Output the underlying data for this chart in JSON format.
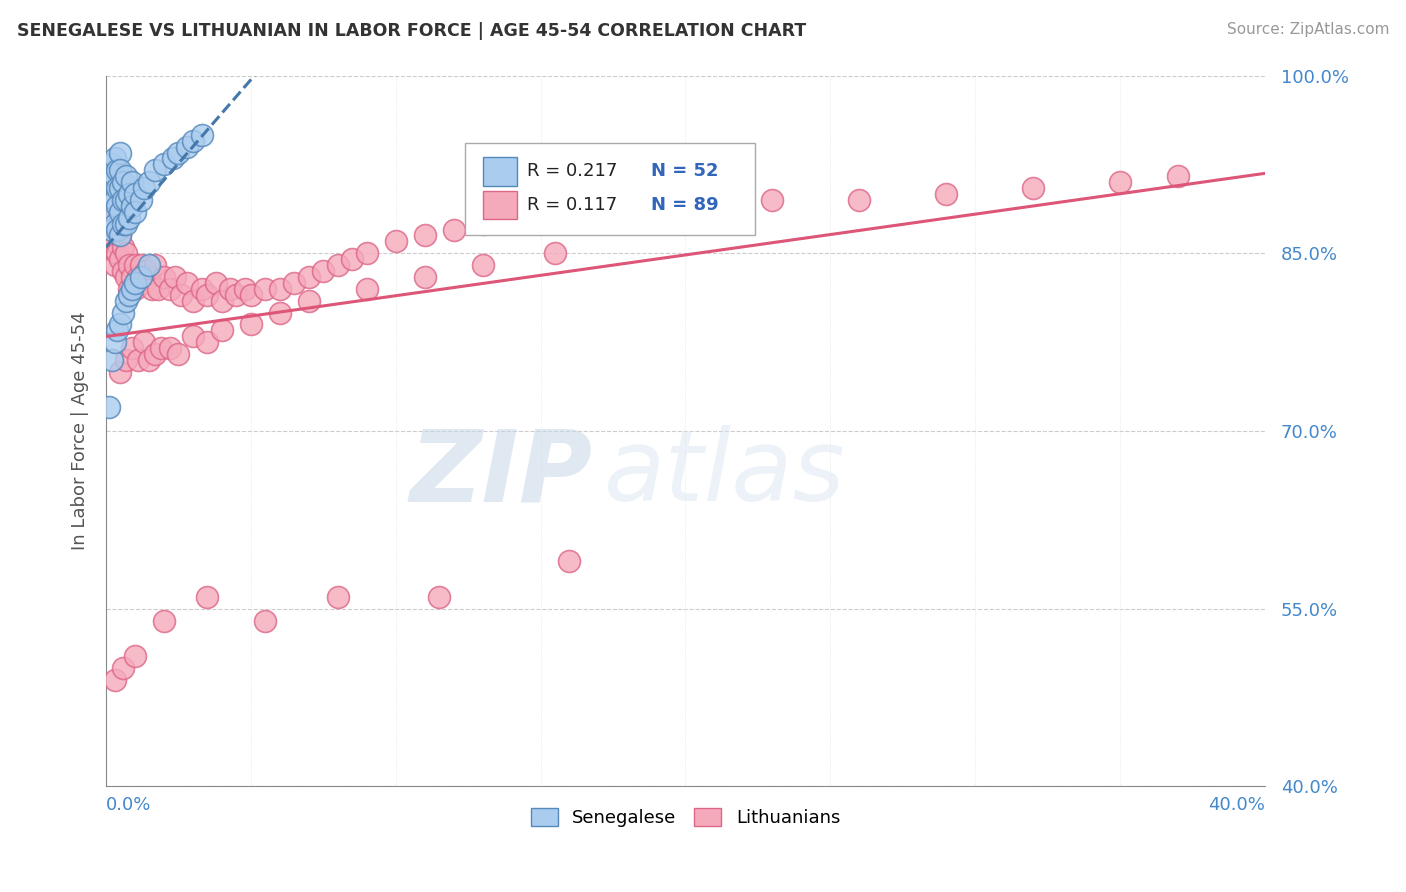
{
  "title": "SENEGALESE VS LITHUANIAN IN LABOR FORCE | AGE 45-54 CORRELATION CHART",
  "source": "Source: ZipAtlas.com",
  "ylabel": "In Labor Force | Age 45-54",
  "xmin": 0.0,
  "xmax": 0.4,
  "ymin": 0.4,
  "ymax": 1.0,
  "legend_r1": "R = 0.217",
  "legend_n1": "N = 52",
  "legend_r2": "R = 0.117",
  "legend_n2": "N = 89",
  "yticks": [
    0.4,
    0.55,
    0.7,
    0.85,
    1.0
  ],
  "ytick_labels": [
    "40.0%",
    "55.0%",
    "70.0%",
    "85.0%",
    "100.0%"
  ],
  "watermark_zip": "ZIP",
  "watermark_atlas": "atlas",
  "senegalese_color": "#aaccee",
  "senegalese_edge": "#5588bb",
  "lithuanian_color": "#f5aabb",
  "lithuanian_edge": "#dd6688",
  "sen_line_color": "#4477aa",
  "lit_line_color": "#dd5577",
  "senegalese_x": [
    0.001,
    0.001,
    0.002,
    0.002,
    0.002,
    0.003,
    0.003,
    0.003,
    0.003,
    0.004,
    0.004,
    0.004,
    0.004,
    0.005,
    0.005,
    0.005,
    0.005,
    0.005,
    0.006,
    0.006,
    0.006,
    0.007,
    0.007,
    0.007,
    0.008,
    0.008,
    0.009,
    0.009,
    0.01,
    0.01,
    0.012,
    0.013,
    0.015,
    0.017,
    0.02,
    0.023,
    0.025,
    0.028,
    0.03,
    0.033,
    0.001,
    0.002,
    0.003,
    0.004,
    0.005,
    0.006,
    0.007,
    0.008,
    0.009,
    0.01,
    0.012,
    0.015
  ],
  "senegalese_y": [
    0.895,
    0.88,
    0.925,
    0.91,
    0.87,
    0.93,
    0.915,
    0.895,
    0.875,
    0.92,
    0.905,
    0.89,
    0.87,
    0.935,
    0.92,
    0.905,
    0.885,
    0.865,
    0.91,
    0.895,
    0.875,
    0.915,
    0.895,
    0.875,
    0.9,
    0.88,
    0.91,
    0.89,
    0.9,
    0.885,
    0.895,
    0.905,
    0.91,
    0.92,
    0.925,
    0.93,
    0.935,
    0.94,
    0.945,
    0.95,
    0.72,
    0.76,
    0.775,
    0.785,
    0.79,
    0.8,
    0.81,
    0.815,
    0.82,
    0.825,
    0.83,
    0.84
  ],
  "lithuanian_x": [
    0.001,
    0.002,
    0.003,
    0.003,
    0.004,
    0.004,
    0.005,
    0.005,
    0.006,
    0.006,
    0.007,
    0.007,
    0.008,
    0.008,
    0.009,
    0.01,
    0.01,
    0.011,
    0.012,
    0.013,
    0.014,
    0.015,
    0.016,
    0.017,
    0.018,
    0.02,
    0.022,
    0.024,
    0.026,
    0.028,
    0.03,
    0.033,
    0.035,
    0.038,
    0.04,
    0.043,
    0.045,
    0.048,
    0.05,
    0.055,
    0.06,
    0.065,
    0.07,
    0.075,
    0.08,
    0.085,
    0.09,
    0.1,
    0.11,
    0.12,
    0.13,
    0.15,
    0.17,
    0.2,
    0.23,
    0.26,
    0.29,
    0.32,
    0.35,
    0.37,
    0.005,
    0.007,
    0.009,
    0.011,
    0.013,
    0.015,
    0.017,
    0.019,
    0.022,
    0.025,
    0.03,
    0.035,
    0.04,
    0.05,
    0.06,
    0.07,
    0.09,
    0.11,
    0.13,
    0.155,
    0.003,
    0.006,
    0.01,
    0.02,
    0.035,
    0.055,
    0.08,
    0.115,
    0.16
  ],
  "lithuanian_y": [
    0.86,
    0.875,
    0.86,
    0.84,
    0.87,
    0.85,
    0.865,
    0.845,
    0.855,
    0.835,
    0.85,
    0.83,
    0.84,
    0.82,
    0.83,
    0.84,
    0.82,
    0.83,
    0.84,
    0.825,
    0.835,
    0.83,
    0.82,
    0.84,
    0.82,
    0.83,
    0.82,
    0.83,
    0.815,
    0.825,
    0.81,
    0.82,
    0.815,
    0.825,
    0.81,
    0.82,
    0.815,
    0.82,
    0.815,
    0.82,
    0.82,
    0.825,
    0.83,
    0.835,
    0.84,
    0.845,
    0.85,
    0.86,
    0.865,
    0.87,
    0.875,
    0.88,
    0.885,
    0.89,
    0.895,
    0.895,
    0.9,
    0.905,
    0.91,
    0.915,
    0.75,
    0.76,
    0.77,
    0.76,
    0.775,
    0.76,
    0.765,
    0.77,
    0.77,
    0.765,
    0.78,
    0.775,
    0.785,
    0.79,
    0.8,
    0.81,
    0.82,
    0.83,
    0.84,
    0.85,
    0.49,
    0.5,
    0.51,
    0.54,
    0.56,
    0.54,
    0.56,
    0.56,
    0.59
  ]
}
